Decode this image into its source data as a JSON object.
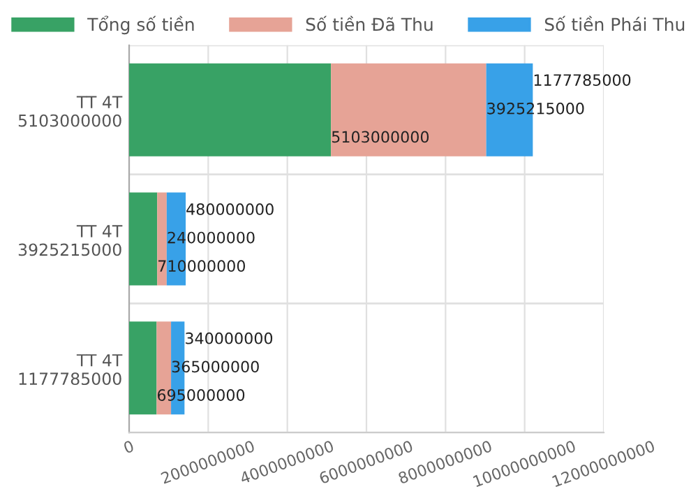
{
  "chart_data": {
    "type": "bar",
    "orientation": "horizontal",
    "stacked": true,
    "data_labels": true,
    "grid": true,
    "legend": "top",
    "categories": [
      "TT 4T\n5103000000",
      "TT 4T\n3925215000",
      "TT 4T\n1177785000"
    ],
    "series": [
      {
        "name": "Tổng số tiền",
        "color": "#38a265",
        "values": [
          5103000000,
          710000000,
          695000000
        ]
      },
      {
        "name": "Số tiền Đã Thu",
        "color": "#e6a396",
        "values": [
          3925215000,
          240000000,
          365000000
        ]
      },
      {
        "name": "Số tiền Phái Thu",
        "color": "#38a1e8",
        "values": [
          1177785000,
          480000000,
          340000000
        ]
      }
    ],
    "xlim": [
      0,
      12000000000
    ],
    "xticks": [
      0,
      2000000000,
      4000000000,
      6000000000,
      8000000000,
      10000000000,
      12000000000
    ]
  }
}
